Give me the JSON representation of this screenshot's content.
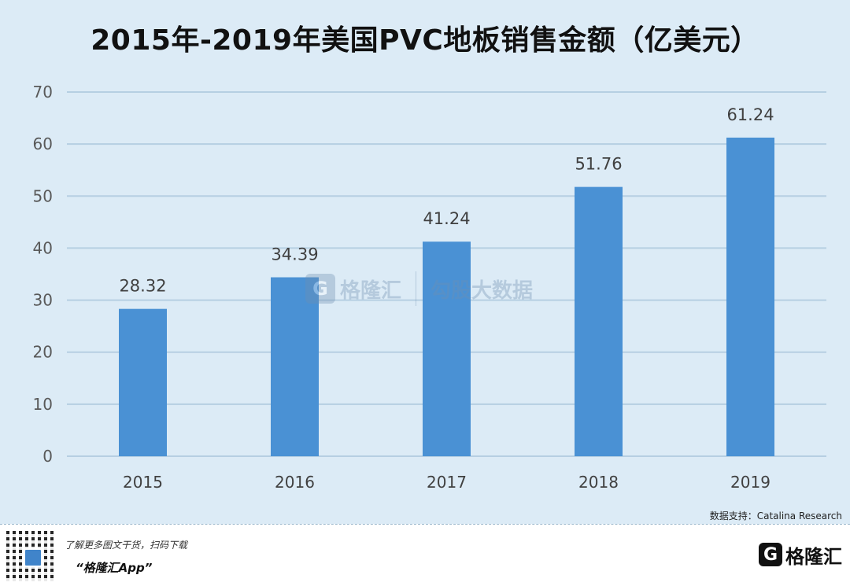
{
  "chart_data": {
    "type": "bar",
    "title": "2015年-2019年美国PVC地板销售金额（亿美元）",
    "categories": [
      "2015",
      "2016",
      "2017",
      "2018",
      "2019"
    ],
    "values": [
      28.32,
      34.39,
      41.24,
      51.76,
      61.24
    ],
    "value_labels": [
      "28.32",
      "34.39",
      "41.24",
      "51.76",
      "61.24"
    ],
    "y_ticks": [
      "0",
      "10",
      "20",
      "30",
      "40",
      "50",
      "60",
      "70"
    ],
    "ylim": [
      0,
      70
    ],
    "grid": true,
    "bar_color": "#4a91d4",
    "grid_color": "#b6cfe2",
    "background_color": "#dcebf6"
  },
  "source": "数据支持：Catalina Research",
  "footer": {
    "promo_line": "了解更多图文干货，扫码下载",
    "promo_app": "“格隆汇App”",
    "brand_logo": "G",
    "brand_name": "格隆汇"
  },
  "watermark": {
    "logo": "G",
    "text_left": "格隆汇",
    "text_right": "勾股大数据"
  }
}
